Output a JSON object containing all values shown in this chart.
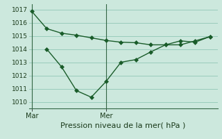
{
  "bg_color": "#cce8dd",
  "grid_color": "#99ccbb",
  "line_color": "#1a5c2a",
  "vline_color": "#336644",
  "ylim": [
    1009.5,
    1017.4
  ],
  "yticks": [
    1010,
    1011,
    1012,
    1013,
    1014,
    1015,
    1016,
    1017
  ],
  "xlabel": "Pression niveau de la mer( hPa )",
  "vline_x": [
    0.0,
    5.0
  ],
  "vline_labels": [
    "Mar",
    "Mer"
  ],
  "xlim": [
    -0.2,
    12.5
  ],
  "line1_x": [
    0,
    1,
    2,
    3,
    4,
    5,
    6,
    7,
    8,
    9,
    10,
    11,
    12
  ],
  "line1_y": [
    1016.85,
    1015.55,
    1015.2,
    1015.05,
    1014.85,
    1014.65,
    1014.52,
    1014.48,
    1014.32,
    1014.32,
    1014.62,
    1014.52,
    1014.95
  ],
  "line2_x": [
    1,
    2,
    3,
    4,
    5,
    6,
    7,
    8,
    9,
    10,
    11,
    12
  ],
  "line2_y": [
    1014.0,
    1012.65,
    1010.85,
    1010.35,
    1011.55,
    1013.0,
    1013.2,
    1013.78,
    1014.32,
    1014.32,
    1014.62,
    1014.95
  ],
  "marker_size": 3.0,
  "linewidth": 1.0,
  "ytick_fontsize": 6.5,
  "xtick_fontsize": 7.0,
  "xlabel_fontsize": 8.0
}
